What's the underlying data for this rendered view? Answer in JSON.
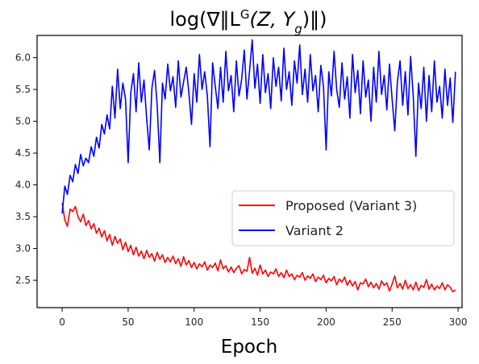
{
  "chart_data": {
    "type": "line",
    "title": "log(∇‖L^G(Z, Y_g)‖)",
    "title_parts": {
      "prefix": "log(∇‖L",
      "superscript": "G",
      "middle": "(Z, Y",
      "subscript": "g",
      "suffix": ")‖)"
    },
    "xlabel": "Epoch",
    "ylabel": "",
    "xlim": [
      -19,
      303
    ],
    "ylim": [
      2.07,
      6.35
    ],
    "xticks": [
      0,
      50,
      100,
      150,
      200,
      250,
      300
    ],
    "yticks": [
      2.5,
      3.0,
      3.5,
      4.0,
      4.5,
      5.0,
      5.5,
      6.0
    ],
    "grid": false,
    "legend": {
      "placement": "center-right"
    },
    "series": [
      {
        "name": "Proposed (Variant 3)",
        "color": "#ff0000",
        "x": [
          0,
          2,
          4,
          6,
          8,
          10,
          12,
          14,
          16,
          18,
          20,
          22,
          24,
          26,
          28,
          30,
          32,
          34,
          36,
          38,
          40,
          42,
          44,
          46,
          48,
          50,
          52,
          54,
          56,
          58,
          60,
          62,
          64,
          66,
          68,
          70,
          72,
          74,
          76,
          78,
          80,
          82,
          84,
          86,
          88,
          90,
          92,
          94,
          96,
          98,
          100,
          102,
          104,
          106,
          108,
          110,
          112,
          114,
          116,
          118,
          120,
          122,
          124,
          126,
          128,
          130,
          132,
          134,
          136,
          138,
          140,
          142,
          144,
          146,
          148,
          150,
          152,
          154,
          156,
          158,
          160,
          162,
          164,
          166,
          168,
          170,
          172,
          174,
          176,
          178,
          180,
          182,
          184,
          186,
          188,
          190,
          192,
          194,
          196,
          198,
          200,
          202,
          204,
          206,
          208,
          210,
          212,
          214,
          216,
          218,
          220,
          222,
          224,
          226,
          228,
          230,
          232,
          234,
          236,
          238,
          240,
          242,
          244,
          246,
          248,
          250,
          252,
          254,
          256,
          258,
          260,
          262,
          264,
          266,
          268,
          270,
          272,
          274,
          276,
          278,
          280,
          282,
          284,
          286,
          288,
          290,
          292,
          294,
          296,
          298
        ],
        "y": [
          3.72,
          3.45,
          3.35,
          3.62,
          3.58,
          3.66,
          3.5,
          3.42,
          3.54,
          3.36,
          3.44,
          3.31,
          3.39,
          3.24,
          3.32,
          3.18,
          3.28,
          3.12,
          3.22,
          3.05,
          3.19,
          3.08,
          3.15,
          2.98,
          3.1,
          2.95,
          3.05,
          2.9,
          3.02,
          2.88,
          2.96,
          2.84,
          2.97,
          2.86,
          2.92,
          2.8,
          2.94,
          2.83,
          2.9,
          2.78,
          2.86,
          2.79,
          2.88,
          2.76,
          2.84,
          2.72,
          2.87,
          2.74,
          2.81,
          2.7,
          2.78,
          2.68,
          2.76,
          2.71,
          2.79,
          2.66,
          2.74,
          2.7,
          2.77,
          2.65,
          2.82,
          2.68,
          2.73,
          2.63,
          2.71,
          2.62,
          2.69,
          2.73,
          2.6,
          2.67,
          2.64,
          2.86,
          2.61,
          2.69,
          2.58,
          2.74,
          2.6,
          2.66,
          2.56,
          2.63,
          2.6,
          2.68,
          2.56,
          2.62,
          2.54,
          2.66,
          2.56,
          2.6,
          2.51,
          2.58,
          2.55,
          2.62,
          2.5,
          2.57,
          2.53,
          2.6,
          2.48,
          2.55,
          2.51,
          2.58,
          2.46,
          2.53,
          2.49,
          2.56,
          2.43,
          2.52,
          2.47,
          2.55,
          2.42,
          2.5,
          2.41,
          2.48,
          2.35,
          2.46,
          2.44,
          2.52,
          2.4,
          2.47,
          2.38,
          2.45,
          2.36,
          2.49,
          2.42,
          2.46,
          2.33,
          2.44,
          2.57,
          2.38,
          2.45,
          2.36,
          2.5,
          2.37,
          2.43,
          2.35,
          2.47,
          2.34,
          2.42,
          2.39,
          2.51,
          2.36,
          2.44,
          2.35,
          2.41,
          2.37,
          2.46,
          2.35,
          2.43,
          2.39,
          2.32,
          2.35
        ]
      },
      {
        "name": "Variant 2",
        "color": "#0000ff",
        "x": [
          0,
          2,
          4,
          6,
          8,
          10,
          12,
          14,
          16,
          18,
          20,
          22,
          24,
          26,
          28,
          30,
          32,
          34,
          36,
          38,
          40,
          42,
          44,
          46,
          48,
          50,
          52,
          54,
          56,
          58,
          60,
          62,
          64,
          66,
          68,
          70,
          72,
          74,
          76,
          78,
          80,
          82,
          84,
          86,
          88,
          90,
          92,
          94,
          96,
          98,
          100,
          102,
          104,
          106,
          108,
          110,
          112,
          114,
          116,
          118,
          120,
          122,
          124,
          126,
          128,
          130,
          132,
          134,
          136,
          138,
          140,
          142,
          144,
          146,
          148,
          150,
          152,
          154,
          156,
          158,
          160,
          162,
          164,
          166,
          168,
          170,
          172,
          174,
          176,
          178,
          180,
          182,
          184,
          186,
          188,
          190,
          192,
          194,
          196,
          198,
          200,
          202,
          204,
          206,
          208,
          210,
          212,
          214,
          216,
          218,
          220,
          222,
          224,
          226,
          228,
          230,
          232,
          234,
          236,
          238,
          240,
          242,
          244,
          246,
          248,
          250,
          252,
          254,
          256,
          258,
          260,
          262,
          264,
          266,
          268,
          270,
          272,
          274,
          276,
          278,
          280,
          282,
          284,
          286,
          288,
          290,
          292,
          294,
          296,
          298
        ],
        "y": [
          3.55,
          3.98,
          3.85,
          4.15,
          4.05,
          4.32,
          4.18,
          4.48,
          4.3,
          4.42,
          4.35,
          4.6,
          4.45,
          4.75,
          4.58,
          4.95,
          4.8,
          5.1,
          4.88,
          5.55,
          5.05,
          5.82,
          5.2,
          5.6,
          5.35,
          4.35,
          5.45,
          5.75,
          5.15,
          5.92,
          5.3,
          5.65,
          5.05,
          4.55,
          5.52,
          5.8,
          5.25,
          4.35,
          5.6,
          5.35,
          5.9,
          5.48,
          5.7,
          5.22,
          5.95,
          5.38,
          5.62,
          5.85,
          5.45,
          4.95,
          5.75,
          5.3,
          6.05,
          5.5,
          5.78,
          5.4,
          4.6,
          5.92,
          5.55,
          5.2,
          5.85,
          5.3,
          6.1,
          5.48,
          5.72,
          5.15,
          5.95,
          5.4,
          5.66,
          6.12,
          5.35,
          5.8,
          6.28,
          5.52,
          5.9,
          5.28,
          6.05,
          5.45,
          5.75,
          5.2,
          6.0,
          5.55,
          5.85,
          5.32,
          6.15,
          5.5,
          5.78,
          5.25,
          5.95,
          5.6,
          6.2,
          5.42,
          5.82,
          5.3,
          6.05,
          5.48,
          5.72,
          5.15,
          5.88,
          5.55,
          4.55,
          5.78,
          5.4,
          6.1,
          5.5,
          5.22,
          5.92,
          5.35,
          5.7,
          5.05,
          6.05,
          5.45,
          5.8,
          5.12,
          5.95,
          5.38,
          5.65,
          5.0,
          5.85,
          5.3,
          6.1,
          5.42,
          5.72,
          5.18,
          5.9,
          5.35,
          4.85,
          5.62,
          5.95,
          5.25,
          5.78,
          5.1,
          6.02,
          5.4,
          4.45,
          5.6,
          5.2,
          5.85,
          5.0,
          5.72,
          5.15,
          5.95,
          5.3,
          5.55,
          5.05,
          5.82,
          5.25,
          5.68,
          4.98,
          5.78
        ]
      }
    ]
  }
}
